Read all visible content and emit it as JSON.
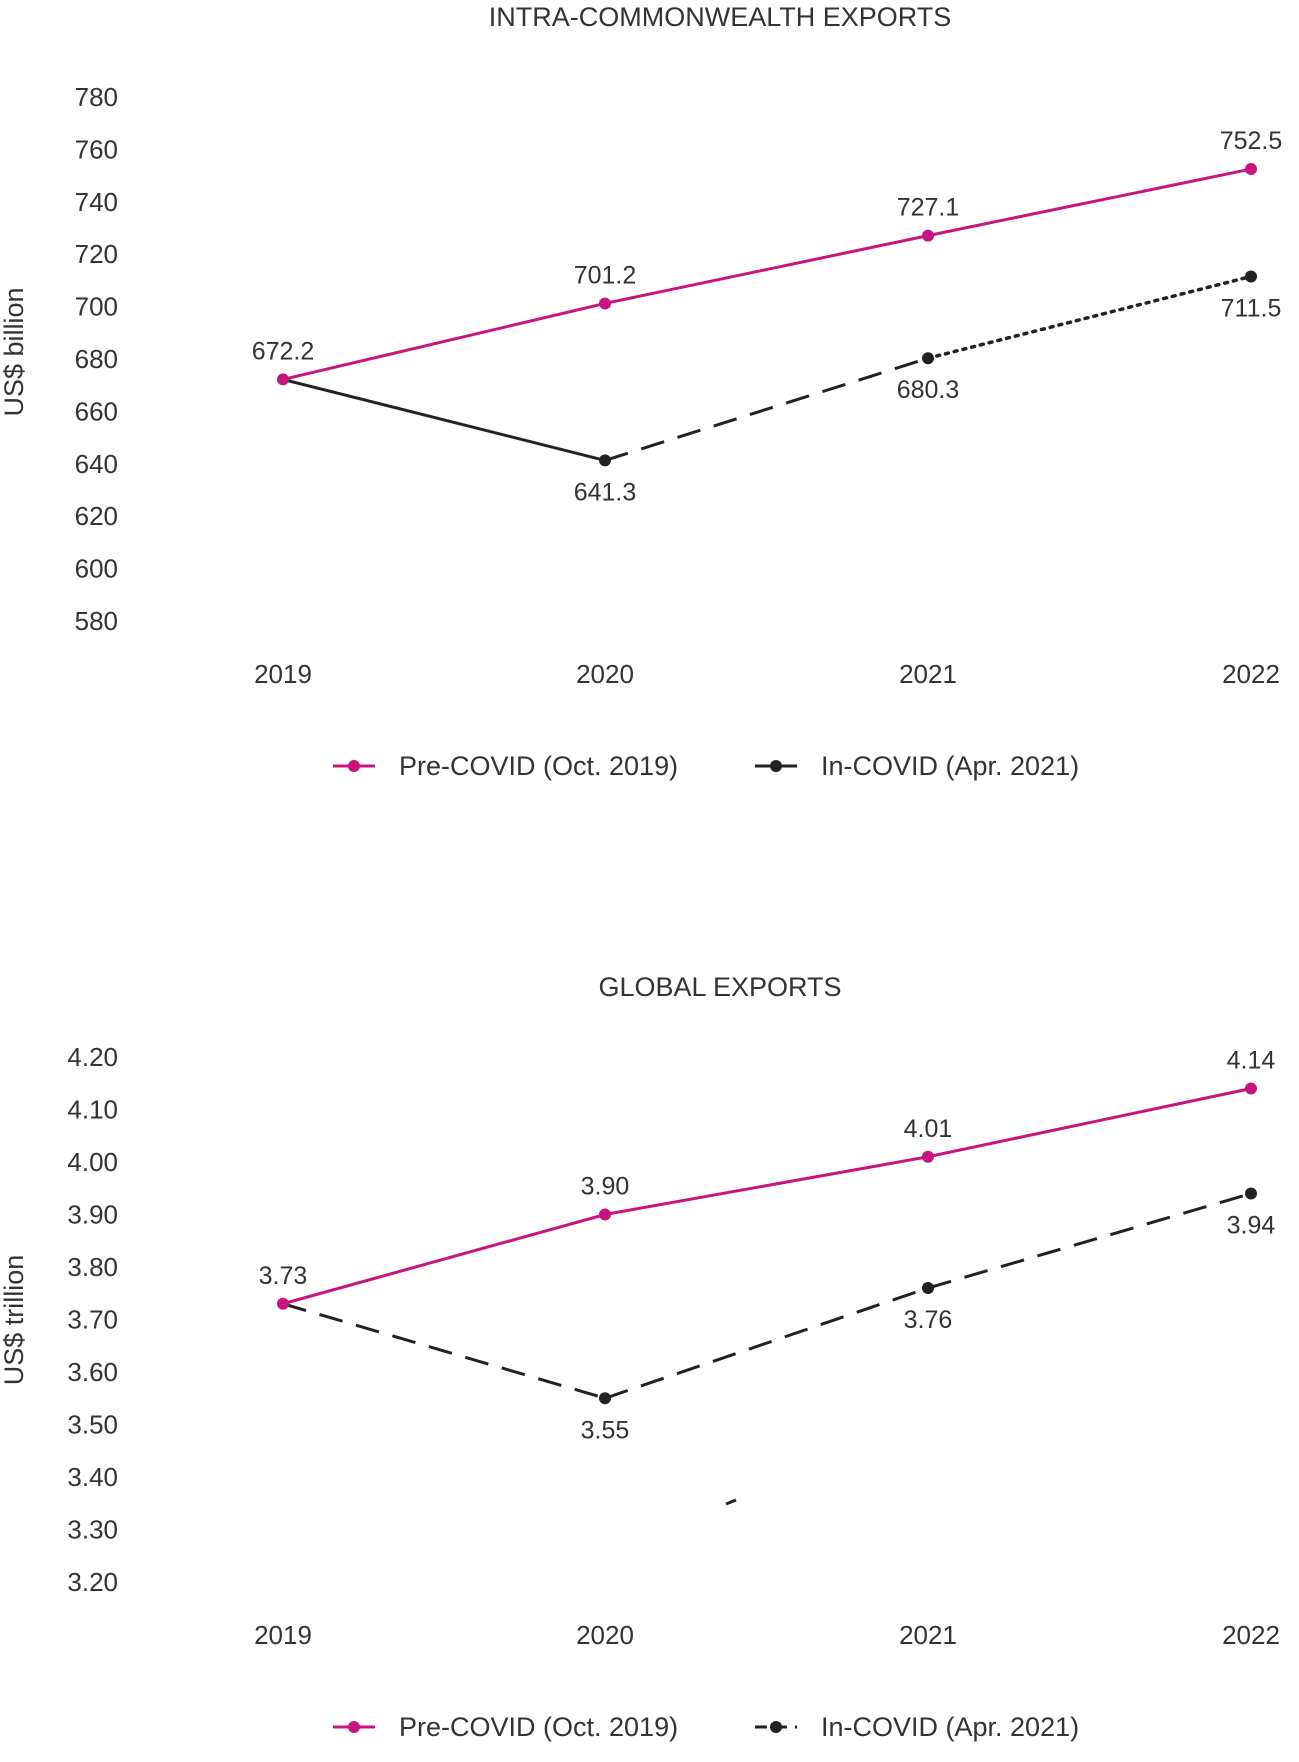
{
  "colors": {
    "pre": "#c8157e",
    "in": "#222222",
    "text": "#333333"
  },
  "chart_data": [
    {
      "type": "line",
      "title": "INTRA-COMMONWEALTH EXPORTS",
      "xlabel": "",
      "ylabel": "US$ billion",
      "ylim": [
        580,
        780
      ],
      "yticks": [
        "780",
        "760",
        "740",
        "720",
        "700",
        "680",
        "660",
        "640",
        "620",
        "600",
        "580"
      ],
      "categories": [
        "2019",
        "2020",
        "2021",
        "2022"
      ],
      "grid": false,
      "legend_position": "bottom",
      "series": [
        {
          "name": "Pre-COVID (Oct. 2019)",
          "values": [
            672.2,
            701.2,
            727.1,
            752.5
          ],
          "labels": [
            "672.2",
            "701.2",
            "727.1",
            "752.5"
          ],
          "label_side": [
            "above",
            "above",
            "above",
            "above"
          ],
          "segment_styles": [
            "solid",
            "solid",
            "solid"
          ]
        },
        {
          "name": "In-COVID (Apr. 2021)",
          "values": [
            672.2,
            641.3,
            680.3,
            711.5
          ],
          "labels": [
            "",
            "641.3",
            "680.3",
            "711.5"
          ],
          "label_side": [
            "none",
            "below",
            "below",
            "below"
          ],
          "segment_styles": [
            "solid",
            "dashed",
            "dotted"
          ]
        }
      ]
    },
    {
      "type": "line",
      "title": "GLOBAL EXPORTS",
      "xlabel": "",
      "ylabel": "US$ trillion",
      "ylim": [
        3.2,
        4.2
      ],
      "yticks": [
        "4.20",
        "4.10",
        "4.00",
        "3.90",
        "3.80",
        "3.70",
        "3.60",
        "3.50",
        "3.40",
        "3.30",
        "3.20"
      ],
      "categories": [
        "2019",
        "2020",
        "2021",
        "2022"
      ],
      "grid": false,
      "legend_position": "bottom",
      "series": [
        {
          "name": "Pre-COVID (Oct. 2019)",
          "values": [
            3.73,
            3.9,
            4.01,
            4.14
          ],
          "labels": [
            "3.73",
            "3.90",
            "4.01",
            "4.14"
          ],
          "label_side": [
            "above",
            "above",
            "above",
            "above"
          ],
          "segment_styles": [
            "solid",
            "solid",
            "solid"
          ]
        },
        {
          "name": "In-COVID (Apr. 2021)",
          "values": [
            3.73,
            3.55,
            3.76,
            3.94
          ],
          "labels": [
            "",
            "3.55",
            "3.76",
            "3.94"
          ],
          "label_side": [
            "none",
            "below",
            "below",
            "below"
          ],
          "segment_styles": [
            "dashed",
            "dashed",
            "dashed"
          ]
        }
      ]
    }
  ]
}
